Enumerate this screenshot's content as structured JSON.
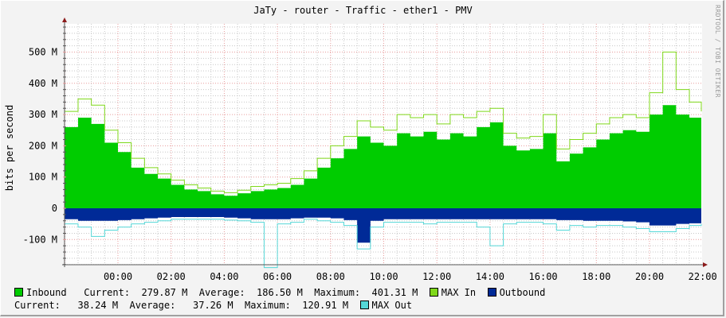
{
  "title": "JaTy - router - Traffic - ether1 - PMV",
  "watermark": "RRDTOOL / TOBI OETIKER",
  "y_axis_label": "bits per second",
  "colors": {
    "inbound": "#00cc00",
    "max_in": "#7fd81a",
    "outbound": "#002a97",
    "max_out": "#55d8d8",
    "grid_minor": "#c8c8c8",
    "grid_major": "#e89c9c",
    "axis": "#555555",
    "arrow": "#8b1a1a"
  },
  "legend": {
    "inbound": {
      "label": "Inbound",
      "current_label": "Current:",
      "current": "279.87 M",
      "average_label": "Average:",
      "average": "186.50 M",
      "maximum_label": "Maximum:",
      "maximum": "401.31 M"
    },
    "max_in": {
      "label": "MAX In"
    },
    "outbound": {
      "label": "Outbound",
      "current_label": "Current:",
      "current": "38.24 M",
      "average_label": "Average:",
      "average": "37.26 M",
      "maximum_label": "Maximum:",
      "maximum": "120.91 M"
    },
    "max_out": {
      "label": "MAX Out"
    }
  },
  "chart_data": {
    "type": "area",
    "title": "JaTy - router - Traffic - ether1 - PMV",
    "xlabel": "",
    "ylabel": "bits per second",
    "ylim": [
      -190,
      590
    ],
    "y_unit": "M",
    "yticks": [
      {
        "value": 500,
        "label": "500 M"
      },
      {
        "value": 400,
        "label": "400 M"
      },
      {
        "value": 300,
        "label": "300 M"
      },
      {
        "value": 200,
        "label": "200 M"
      },
      {
        "value": 100,
        "label": "100 M"
      },
      {
        "value": 0,
        "label": "0"
      },
      {
        "value": -100,
        "label": "-100 M"
      }
    ],
    "xticks": [
      "00:00",
      "02:00",
      "04:00",
      "06:00",
      "08:00",
      "10:00",
      "12:00",
      "14:00",
      "16:00",
      "18:00",
      "20:00",
      "22:00"
    ],
    "x_hours": [
      -2.0,
      -1.5,
      -1.0,
      -0.5,
      0.0,
      0.5,
      1.0,
      1.5,
      2.0,
      2.5,
      3.0,
      3.5,
      4.0,
      4.5,
      5.0,
      5.5,
      6.0,
      6.5,
      7.0,
      7.5,
      8.0,
      8.5,
      9.0,
      9.5,
      10.0,
      10.5,
      11.0,
      11.5,
      12.0,
      12.5,
      13.0,
      13.5,
      14.0,
      14.5,
      15.0,
      15.5,
      16.0,
      16.5,
      17.0,
      17.5,
      18.0,
      18.5,
      19.0,
      19.5,
      20.0,
      20.5,
      21.0,
      21.5,
      22.0
    ],
    "series": [
      {
        "name": "Inbound",
        "color": "#00cc00",
        "values": [
          260,
          290,
          270,
          210,
          180,
          130,
          110,
          95,
          75,
          60,
          55,
          45,
          40,
          48,
          55,
          60,
          65,
          75,
          95,
          130,
          160,
          190,
          230,
          210,
          200,
          240,
          230,
          245,
          220,
          240,
          230,
          260,
          275,
          200,
          185,
          190,
          240,
          150,
          175,
          195,
          220,
          240,
          250,
          245,
          300,
          330,
          300,
          290,
          280
        ]
      },
      {
        "name": "MAX In",
        "color": "#7fd81a",
        "values": [
          310,
          350,
          330,
          250,
          210,
          160,
          130,
          110,
          90,
          75,
          65,
          55,
          50,
          58,
          70,
          75,
          80,
          95,
          120,
          160,
          200,
          230,
          280,
          260,
          250,
          300,
          290,
          300,
          270,
          300,
          290,
          310,
          320,
          240,
          225,
          230,
          300,
          190,
          220,
          240,
          270,
          290,
          300,
          290,
          370,
          500,
          380,
          340,
          310
        ]
      },
      {
        "name": "Outbound",
        "color": "#002a97",
        "values": [
          -35,
          -40,
          -40,
          -40,
          -38,
          -35,
          -32,
          -30,
          -28,
          -28,
          -28,
          -28,
          -30,
          -32,
          -35,
          -35,
          -35,
          -32,
          -30,
          -30,
          -32,
          -38,
          -110,
          -40,
          -35,
          -35,
          -35,
          -35,
          -35,
          -35,
          -35,
          -35,
          -35,
          -35,
          -35,
          -35,
          -35,
          -38,
          -38,
          -40,
          -40,
          -40,
          -42,
          -45,
          -55,
          -55,
          -50,
          -48,
          -45
        ]
      },
      {
        "name": "MAX Out",
        "color": "#55d8d8",
        "values": [
          -50,
          -60,
          -90,
          -70,
          -60,
          -50,
          -45,
          -40,
          -35,
          -35,
          -35,
          -35,
          -38,
          -40,
          -45,
          -190,
          -50,
          -45,
          -35,
          -40,
          -45,
          -55,
          -130,
          -60,
          -45,
          -45,
          -45,
          -50,
          -45,
          -45,
          -45,
          -60,
          -120,
          -50,
          -45,
          -45,
          -50,
          -70,
          -55,
          -60,
          -55,
          -55,
          -60,
          -65,
          -75,
          -75,
          -65,
          -55,
          -50
        ]
      }
    ],
    "grid": true,
    "legend_position": "bottom"
  }
}
